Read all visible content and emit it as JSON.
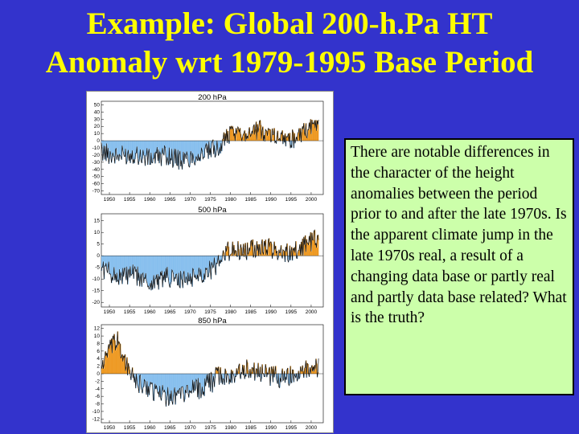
{
  "slide": {
    "title_line1": "Example: Global 200-h.Pa HT",
    "title_line2": "Anomaly wrt 1979-1995 Base Period"
  },
  "note": {
    "text": "There are notable differences in the character of the height anomalies between the period prior to and after the late 1970s. Is the apparent climate jump in the late 1970s real, a result of a changing data base or partly real and partly data base related? What is the truth?"
  },
  "colors": {
    "background": "#3333cc",
    "title": "#ffff00",
    "note_background": "#ccffaa",
    "negative_fill": "#87bfee",
    "positive_fill": "#ee9922",
    "line": "#111111"
  },
  "chart_data": [
    {
      "type": "area",
      "title": "200 hPa",
      "x_ticks": [
        1950,
        1955,
        1960,
        1965,
        1970,
        1975,
        1980,
        1985,
        1990,
        1995,
        2000
      ],
      "y_ticks": [
        50,
        40,
        30,
        20,
        10,
        0,
        -10,
        -20,
        -30,
        -40,
        -50,
        -60,
        -70
      ],
      "xlim": [
        1948,
        2003
      ],
      "ylim": [
        -75,
        55
      ],
      "segments": [
        {
          "x": [
            1948,
            1952,
            1956,
            1960,
            1964,
            1968,
            1972,
            1975,
            1978
          ],
          "y": [
            -15,
            -22,
            -18,
            -25,
            -20,
            -28,
            -20,
            -15,
            -5
          ]
        },
        {
          "x": [
            1978,
            1981,
            1984,
            1987,
            1990,
            1993,
            1996,
            1999,
            2002
          ],
          "y": [
            3,
            8,
            12,
            15,
            10,
            5,
            2,
            15,
            25
          ]
        }
      ]
    },
    {
      "type": "area",
      "title": "500 hPa",
      "x_ticks": [
        1950,
        1955,
        1960,
        1965,
        1970,
        1975,
        1980,
        1985,
        1990,
        1995,
        2000
      ],
      "y_ticks": [
        15,
        10,
        5,
        0,
        -5,
        -10,
        -15,
        -20
      ],
      "xlim": [
        1948,
        2003
      ],
      "ylim": [
        -22,
        18
      ],
      "segments": [
        {
          "x": [
            1948,
            1952,
            1956,
            1960,
            1964,
            1968,
            1972,
            1975,
            1978
          ],
          "y": [
            -5,
            -9,
            -8,
            -12,
            -9,
            -11,
            -8,
            -6,
            -2
          ]
        },
        {
          "x": [
            1978,
            1981,
            1984,
            1987,
            1990,
            1993,
            1996,
            1999,
            2002
          ],
          "y": [
            1,
            3,
            2,
            4,
            3,
            1,
            2,
            5,
            8
          ]
        }
      ]
    },
    {
      "type": "area",
      "title": "850 hPa",
      "x_ticks": [
        1950,
        1955,
        1960,
        1965,
        1970,
        1975,
        1980,
        1985,
        1990,
        1995,
        2000
      ],
      "y_ticks": [
        12,
        10,
        8,
        6,
        4,
        2,
        0,
        -2,
        -4,
        -6,
        -8,
        -10,
        -12
      ],
      "xlim": [
        1948,
        2003
      ],
      "ylim": [
        -13,
        13
      ],
      "segments": [
        {
          "x": [
            1948,
            1950,
            1952,
            1954,
            1956,
            1960,
            1964,
            1968,
            1972,
            1976
          ],
          "y": [
            2,
            6,
            9,
            3,
            -2,
            -4,
            -6,
            -5,
            -4,
            -2
          ]
        },
        {
          "x": [
            1976,
            1980,
            1984,
            1988,
            1992,
            1996,
            2000,
            2002
          ],
          "y": [
            -1,
            0,
            1,
            0,
            -1,
            0,
            1,
            2
          ]
        }
      ]
    }
  ]
}
